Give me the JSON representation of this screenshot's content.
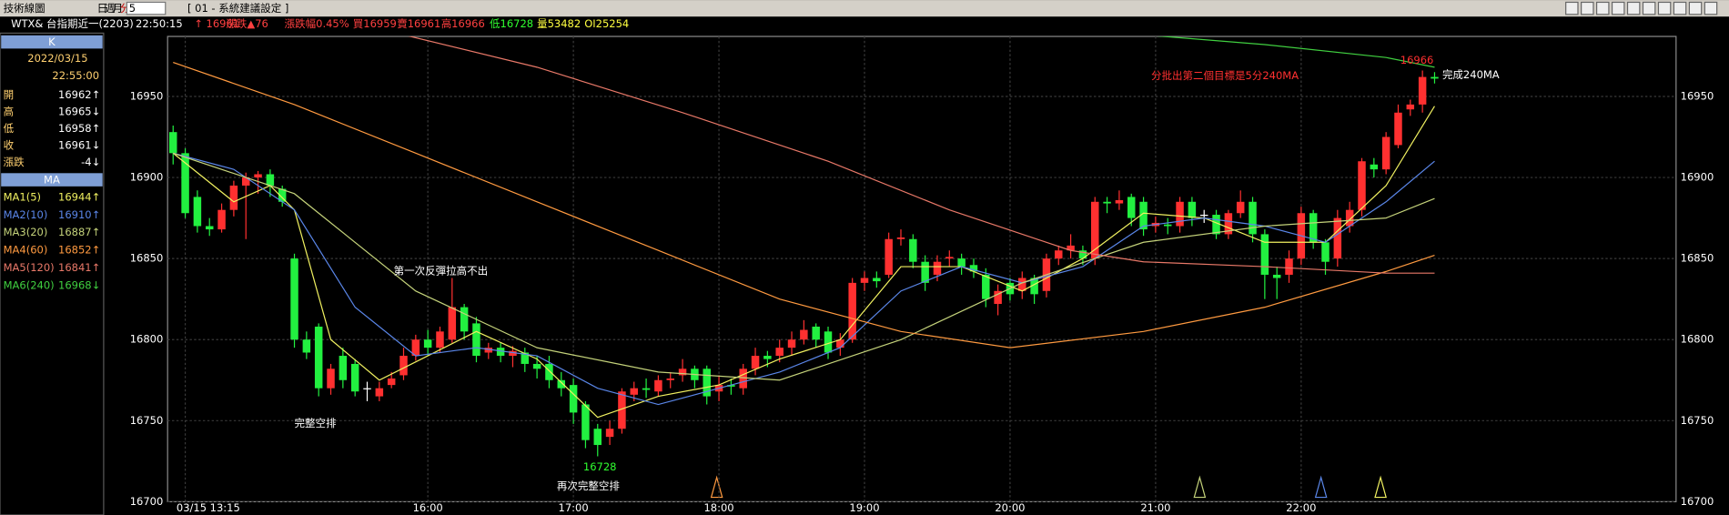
{
  "toolbar": {
    "title": "技術線圖",
    "periods": [
      "日",
      "週",
      "月",
      "分"
    ],
    "interval": "5",
    "setting": "[ 01 - 系統建議設定 ]"
  },
  "quote": [
    {
      "text": "WTX& 台指期近一(2203)",
      "color": "#ffffff"
    },
    {
      "text": "22:50:15",
      "color": "#ffffff"
    },
    {
      "text": "↑ 16961",
      "color": "#ff4040"
    },
    {
      "text": "漲跌▲76",
      "color": "#ff4040"
    },
    {
      "text": "漲跌幅0.45%",
      "color": "#ff4040"
    },
    {
      "text": "買16959",
      "color": "#ff4040"
    },
    {
      "text": "賣16961",
      "color": "#ff4040"
    },
    {
      "text": "高16966",
      "color": "#ff4040"
    },
    {
      "text": "低16728",
      "color": "#30ff30"
    },
    {
      "text": "量53482",
      "color": "#ffff40"
    },
    {
      "text": "OI25254",
      "color": "#ffff40"
    }
  ],
  "k_panel": {
    "title": "K",
    "date": "2022/03/15",
    "time": "22:55:00",
    "rows": [
      [
        "開",
        "16962↑"
      ],
      [
        "高",
        "16965↓"
      ],
      [
        "低",
        "16958↑"
      ],
      [
        "收",
        "16961↓"
      ],
      [
        "漲跌",
        "-4↓"
      ]
    ]
  },
  "ma_title": "MA",
  "chart_data": {
    "type": "candlestick",
    "categories": [
      null,
      "03/15 13:15",
      null,
      null,
      null,
      null,
      null,
      null,
      null,
      null,
      null,
      null,
      null,
      null,
      null,
      null,
      null,
      null,
      null,
      null,
      null,
      "16:00",
      null,
      null,
      null,
      null,
      null,
      null,
      null,
      null,
      null,
      null,
      null,
      "17:00",
      null,
      null,
      null,
      null,
      null,
      null,
      null,
      null,
      null,
      null,
      null,
      "18:00",
      null,
      null,
      null,
      null,
      null,
      null,
      null,
      null,
      null,
      null,
      null,
      "19:00",
      null,
      null,
      null,
      null,
      null,
      null,
      null,
      null,
      null,
      null,
      null,
      "20:00",
      null,
      null,
      null,
      null,
      null,
      null,
      null,
      null,
      null,
      null,
      null,
      "21:00",
      null,
      null,
      null,
      null,
      null,
      null,
      null,
      null,
      null,
      null,
      null,
      "22:00",
      null,
      null,
      null,
      null,
      null,
      null,
      null,
      null,
      null,
      null,
      null
    ],
    "open": [
      16928,
      16915,
      16888,
      16870,
      16868,
      16880,
      16895,
      16900,
      16902,
      16893,
      16850,
      16800,
      16808,
      16770,
      16790,
      16785,
      16770,
      16765,
      16772,
      16778,
      16790,
      16800,
      16795,
      16800,
      16820,
      16810,
      16792,
      16795,
      16790,
      16792,
      16785,
      16785,
      16775,
      16772,
      16760,
      16745,
      16740,
      16745,
      16766,
      16770,
      16768,
      16775,
      16778,
      16782,
      16782,
      16768,
      16772,
      16770,
      16782,
      16790,
      16790,
      16795,
      16800,
      16808,
      16805,
      16795,
      16800,
      16835,
      16838,
      16840,
      16862,
      16862,
      16848,
      16840,
      16850,
      16850,
      16846,
      16840,
      16822,
      16835,
      16830,
      16838,
      16830,
      16850,
      16855,
      16855,
      16850,
      16885,
      16884,
      16888,
      16885,
      16870,
      16871,
      16870,
      16885,
      16877,
      16877,
      16865,
      16878,
      16885,
      16865,
      16840,
      16840,
      16850,
      16878,
      16860,
      16850,
      16870,
      16880,
      16908,
      16905,
      16920,
      16942,
      16945,
      16962
    ],
    "high": [
      16932,
      16918,
      16892,
      16875,
      16884,
      16898,
      16903,
      16904,
      16905,
      16895,
      16853,
      16805,
      16810,
      16785,
      16795,
      16788,
      16774,
      16774,
      16780,
      16795,
      16803,
      16806,
      16808,
      16838,
      16822,
      16814,
      16798,
      16798,
      16796,
      16795,
      16790,
      16790,
      16780,
      16776,
      16762,
      16748,
      16750,
      16770,
      16774,
      16776,
      16778,
      16780,
      16788,
      16784,
      16784,
      16778,
      16776,
      16785,
      16795,
      16793,
      16800,
      16805,
      16812,
      16810,
      16808,
      16804,
      16838,
      16842,
      16842,
      16866,
      16868,
      16865,
      16852,
      16852,
      16855,
      16853,
      16850,
      16844,
      16834,
      16838,
      16842,
      16840,
      16853,
      16858,
      16865,
      16858,
      16888,
      16888,
      16892,
      16890,
      16888,
      16876,
      16875,
      16888,
      16888,
      16880,
      16880,
      16880,
      16892,
      16888,
      16868,
      16845,
      16855,
      16882,
      16880,
      16862,
      16880,
      16885,
      16912,
      16912,
      16928,
      16945,
      16948,
      16966,
      16965
    ],
    "low": [
      16908,
      16875,
      16866,
      16864,
      16866,
      16876,
      16862,
      16890,
      16888,
      16882,
      16795,
      16788,
      16765,
      16766,
      16770,
      16765,
      16762,
      16762,
      16770,
      16775,
      16787,
      16790,
      16792,
      16798,
      16800,
      16786,
      16788,
      16786,
      16783,
      16780,
      16776,
      16770,
      16765,
      16748,
      16733,
      16728,
      16735,
      16742,
      16762,
      16764,
      16765,
      16770,
      16774,
      16770,
      16760,
      16762,
      16766,
      16766,
      16778,
      16783,
      16786,
      16790,
      16797,
      16795,
      16788,
      16790,
      16798,
      16830,
      16832,
      16838,
      16858,
      16844,
      16830,
      16836,
      16845,
      16840,
      16838,
      16820,
      16815,
      16824,
      16825,
      16822,
      16826,
      16846,
      16850,
      16846,
      16846,
      16878,
      16880,
      16870,
      16864,
      16866,
      16865,
      16866,
      16870,
      16872,
      16862,
      16862,
      16875,
      16860,
      16825,
      16825,
      16835,
      16846,
      16856,
      16840,
      16845,
      16866,
      16876,
      16900,
      16902,
      16918,
      16938,
      16940,
      16958
    ],
    "close": [
      16915,
      16878,
      16870,
      16868,
      16880,
      16895,
      16900,
      16902,
      16895,
      16885,
      16800,
      16792,
      16770,
      16782,
      16775,
      16768,
      16770,
      16770,
      16776,
      16790,
      16800,
      16795,
      16805,
      16820,
      16805,
      16790,
      16795,
      16790,
      16793,
      16785,
      16782,
      16775,
      16770,
      16755,
      16738,
      16735,
      16745,
      16768,
      16770,
      16769,
      16775,
      16776,
      16782,
      16775,
      16765,
      16772,
      16771,
      16782,
      16790,
      16788,
      16795,
      16800,
      16806,
      16800,
      16792,
      16800,
      16835,
      16838,
      16836,
      16862,
      16863,
      16848,
      16835,
      16848,
      16851,
      16845,
      16842,
      16825,
      16830,
      16828,
      16838,
      16828,
      16850,
      16855,
      16858,
      16850,
      16885,
      16884,
      16886,
      16875,
      16868,
      16872,
      16870,
      16885,
      16875,
      16877,
      16865,
      16878,
      16885,
      16865,
      16840,
      16838,
      16850,
      16878,
      16860,
      16848,
      16875,
      16880,
      16910,
      16905,
      16925,
      16940,
      16945,
      16962,
      16961
    ],
    "up_color": "#ff3030",
    "down_color": "#22f040",
    "flat_color": "#ffffff",
    "lines": [
      {
        "name": "MA1(5)",
        "color": "#f0f060",
        "last_label": "16944↑",
        "x": [
          0,
          5,
          8,
          10,
          13,
          17,
          21,
          25,
          30,
          35,
          40,
          45,
          50,
          55,
          60,
          65,
          70,
          75,
          80,
          85,
          90,
          95,
          100,
          104
        ],
        "values": [
          16915,
          16885,
          16895,
          16880,
          16800,
          16775,
          16790,
          16805,
          16788,
          16752,
          16765,
          16772,
          16788,
          16800,
          16845,
          16845,
          16830,
          16850,
          16878,
          16875,
          16860,
          16860,
          16895,
          16944
        ]
      },
      {
        "name": "MA2(10)",
        "color": "#5a86e8",
        "last_label": "16910↑",
        "x": [
          0,
          5,
          10,
          15,
          20,
          25,
          30,
          35,
          40,
          45,
          50,
          55,
          60,
          65,
          70,
          75,
          80,
          85,
          90,
          95,
          100,
          104
        ],
        "values": [
          16915,
          16905,
          16880,
          16820,
          16790,
          16795,
          16790,
          16770,
          16760,
          16770,
          16780,
          16795,
          16830,
          16845,
          16835,
          16845,
          16870,
          16875,
          16870,
          16860,
          16885,
          16910
        ]
      },
      {
        "name": "MA3(20)",
        "color": "#c4d27a",
        "last_label": "16887↑",
        "x": [
          0,
          10,
          20,
          30,
          40,
          50,
          60,
          70,
          80,
          90,
          100,
          104
        ],
        "values": [
          16915,
          16890,
          16830,
          16795,
          16780,
          16775,
          16800,
          16835,
          16860,
          16870,
          16875,
          16887
        ]
      },
      {
        "name": "MA4(60)",
        "color": "#ff9a40",
        "last_label": "16852↑",
        "x": [
          0,
          10,
          20,
          30,
          40,
          50,
          60,
          69,
          80,
          90,
          100,
          104
        ],
        "values": [
          16971,
          16945,
          16915,
          16885,
          16855,
          16825,
          16805,
          16795,
          16805,
          16820,
          16842,
          16852
        ]
      },
      {
        "name": "MA5(120)",
        "color": "#e87868",
        "last_label": "16841↑",
        "x": [
          19,
          30,
          42,
          54,
          64,
          74,
          80,
          90,
          100,
          104
        ],
        "values": [
          16988,
          16968,
          16940,
          16910,
          16880,
          16855,
          16848,
          16845,
          16841,
          16841
        ]
      },
      {
        "name": "MA6(240)",
        "color": "#40d040",
        "last_label": "16968↓",
        "x": [
          80,
          90,
          100,
          104
        ],
        "values": [
          16988,
          16982,
          16974,
          16968
        ]
      }
    ],
    "ylim": [
      16700,
      16987
    ],
    "yticks": [
      16700,
      16750,
      16800,
      16850,
      16900,
      16950
    ],
    "grid": true,
    "annotations": [
      {
        "text": "第一次反彈拉高不出",
        "color": "#ffffff"
      },
      {
        "text": "完整空排",
        "color": "#ffffff"
      },
      {
        "text": "再次完整空排",
        "color": "#ffffff"
      },
      {
        "text": "分批出第二個目標是5分240MA",
        "color": "#ff3030"
      },
      {
        "text": "完成240MA",
        "color": "#ffffff"
      }
    ]
  }
}
